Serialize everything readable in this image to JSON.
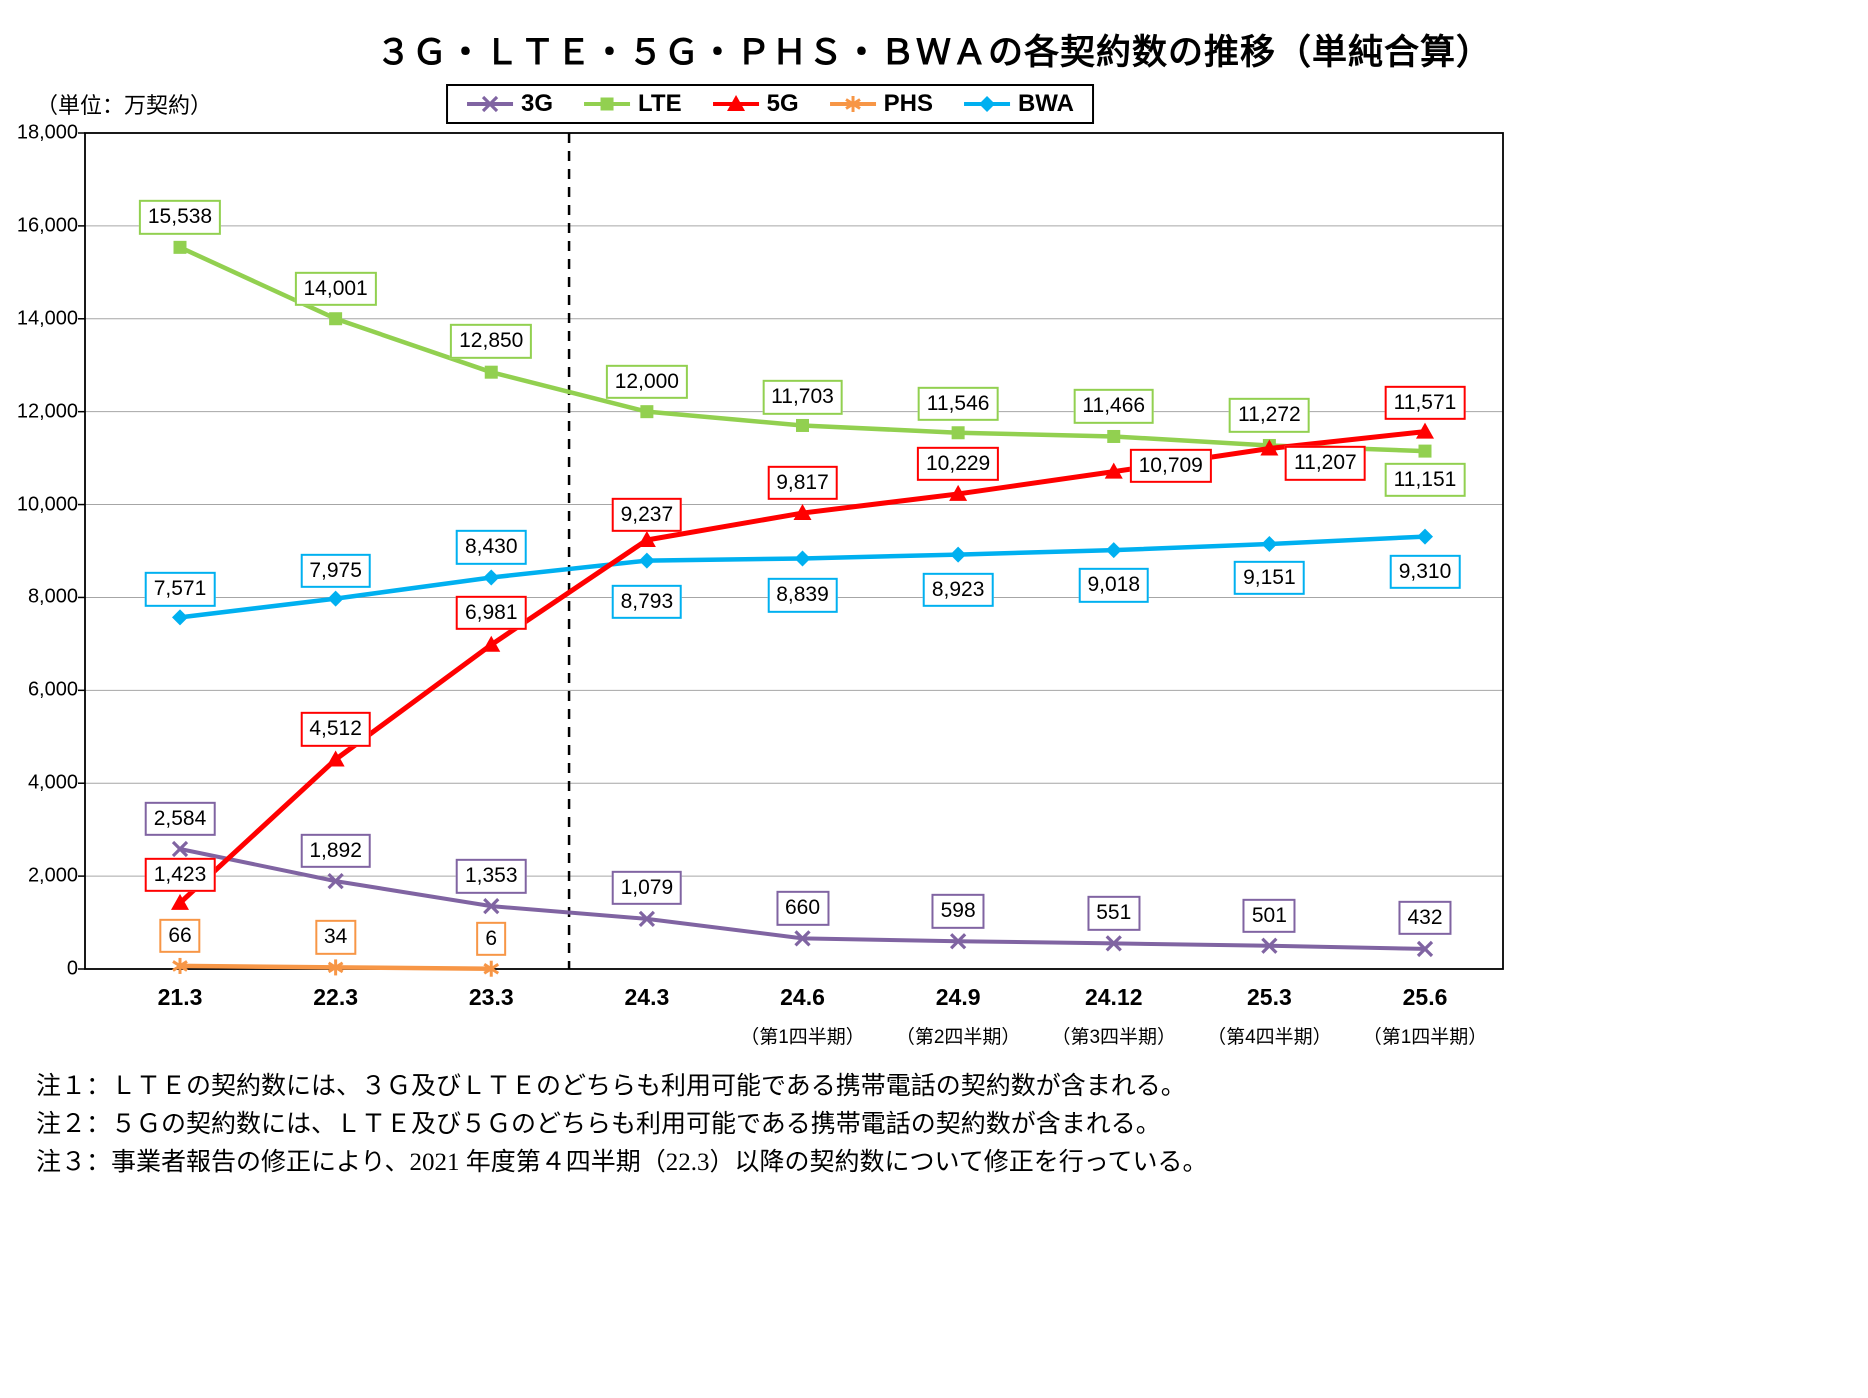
{
  "title": "３Ｇ・ＬＴＥ・５Ｇ・ＰＨＳ・ＢＷＡの各契約数の推移（単純合算）",
  "unit_label": "（単位：万契約）",
  "notes": [
    "注１：ＬＴＥの契約数には、３Ｇ及びＬＴＥのどちらも利用可能である携帯電話の契約数が含まれる。",
    "注２：５Ｇの契約数には、ＬＴＥ及び５Ｇのどちらも利用可能である携帯電話の契約数が含まれる。",
    "注３：事業者報告の修正により、2021 年度第４四半期（22.3）以降の契約数について修正を行っている。"
  ],
  "chart_data": {
    "type": "line",
    "title": "３Ｇ・ＬＴＥ・５Ｇ・ＰＨＳ・ＢＷＡの各契約数の推移（単純合算）",
    "ylabel": "（単位：万契約）",
    "ylim": [
      0,
      18000
    ],
    "y_tick_interval": 2000,
    "grid": true,
    "legend_position": "top",
    "separator_after_category": "23.3",
    "categories": [
      "21.3",
      "22.3",
      "23.3",
      "24.3",
      "24.6",
      "24.9",
      "24.12",
      "25.3",
      "25.6"
    ],
    "category_sublabels": [
      "",
      "",
      "",
      "",
      "（第1四半期）",
      "（第2四半期）",
      "（第3四半期）",
      "（第4四半期）",
      "（第1四半期）"
    ],
    "series": [
      {
        "name": "3G",
        "color": "#8064A2",
        "marker": "x",
        "values": [
          2584,
          1892,
          1353,
          1079,
          660,
          598,
          551,
          501,
          432
        ]
      },
      {
        "name": "LTE",
        "color": "#92D050",
        "marker": "square",
        "values": [
          15538,
          14001,
          12850,
          12000,
          11703,
          11546,
          11466,
          11272,
          11151
        ]
      },
      {
        "name": "5G",
        "color": "#FF0000",
        "marker": "triangle",
        "values": [
          1423,
          4512,
          6981,
          9237,
          9817,
          10229,
          10709,
          11207,
          11571
        ]
      },
      {
        "name": "PHS",
        "color": "#F79646",
        "marker": "asterisk",
        "values": [
          66,
          34,
          6,
          null,
          null,
          null,
          null,
          null,
          null
        ]
      },
      {
        "name": "BWA",
        "color": "#00B0F0",
        "marker": "diamond",
        "values": [
          7571,
          7975,
          8430,
          8793,
          8839,
          8923,
          9018,
          9151,
          9310
        ]
      }
    ]
  }
}
